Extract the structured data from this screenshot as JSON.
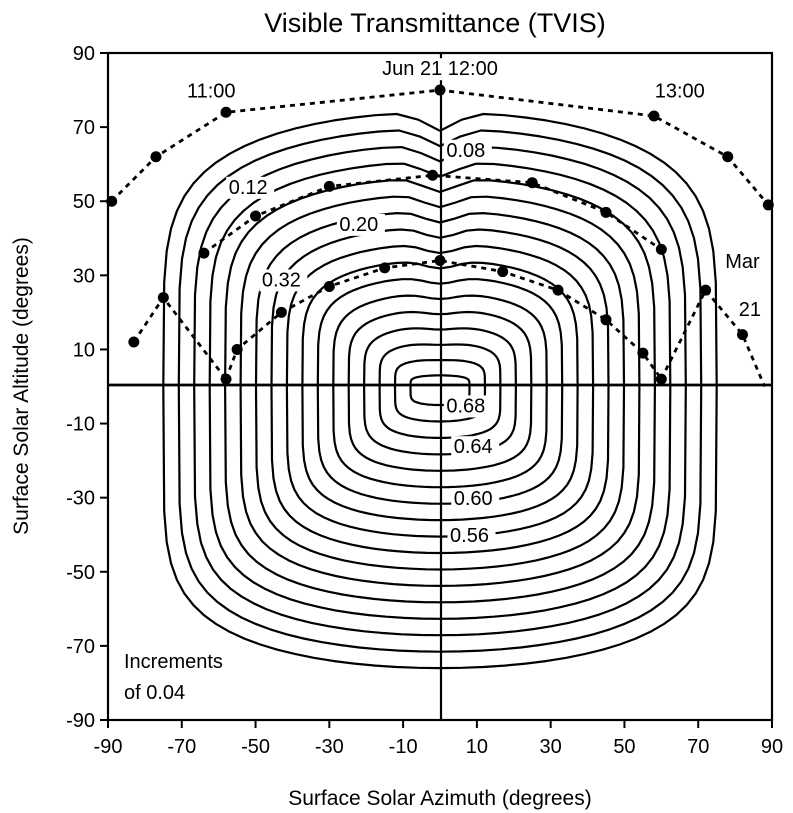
{
  "chart_data": {
    "type": "contour",
    "title": "Visible Transmittance (TVIS)",
    "xlabel": "Surface Solar Azimuth (degrees)",
    "ylabel": "Surface Solar Altitude (degrees)",
    "xlim": [
      -90,
      90
    ],
    "ylim": [
      -90,
      90
    ],
    "x_ticks": [
      -90,
      -70,
      -50,
      -30,
      -10,
      10,
      30,
      50,
      70,
      90
    ],
    "y_ticks": [
      90,
      70,
      50,
      30,
      10,
      -10,
      -30,
      -50,
      -70,
      -90
    ],
    "increment_note": [
      "Increments",
      "of 0.04"
    ],
    "contour_labels": [
      {
        "text": "0.08",
        "x": 7,
        "y": 62
      },
      {
        "text": "0.12",
        "x": -52,
        "y": 52
      },
      {
        "text": "0.20",
        "x": -22,
        "y": 42
      },
      {
        "text": "0.32",
        "x": -43,
        "y": 27
      },
      {
        "text": "0.68",
        "x": 7,
        "y": -7
      },
      {
        "text": "0.64",
        "x": 9,
        "y": -18
      },
      {
        "text": "0.60",
        "x": 9,
        "y": -32
      },
      {
        "text": "0.56",
        "x": 8,
        "y": -42
      }
    ],
    "series": [
      {
        "name": "Jun 21",
        "points": [
          [
            -89,
            50
          ],
          [
            -77,
            62
          ],
          [
            -58,
            74
          ],
          [
            0,
            80
          ],
          [
            58,
            73
          ],
          [
            78,
            62
          ],
          [
            89,
            49
          ]
        ]
      },
      {
        "name": "",
        "points": [
          [
            -64,
            36
          ],
          [
            -50,
            46
          ],
          [
            -30,
            54
          ],
          [
            -2,
            57
          ],
          [
            25,
            55
          ],
          [
            45,
            47
          ],
          [
            60,
            37
          ]
        ]
      },
      {
        "name": "Mar 21",
        "points": [
          [
            -83,
            12
          ],
          [
            -75,
            24
          ],
          [
            -58,
            2
          ],
          [
            -55,
            10
          ],
          [
            -43,
            20
          ],
          [
            -30,
            27
          ],
          [
            -15,
            32
          ],
          [
            0,
            34
          ],
          [
            17,
            31
          ],
          [
            32,
            26
          ],
          [
            45,
            18
          ],
          [
            55,
            9
          ],
          [
            60,
            2
          ],
          [
            72,
            26
          ],
          [
            82,
            14
          ]
        ]
      }
    ],
    "path_annotations": [
      {
        "text": "11:00",
        "x": -62,
        "y": 78
      },
      {
        "text": "Jun 21 12:00",
        "x": 0,
        "y": 84
      },
      {
        "text": "13:00",
        "x": 65,
        "y": 78
      },
      {
        "text": "Mar",
        "x": 82,
        "y": 32
      },
      {
        "text": "21",
        "x": 84,
        "y": 19
      }
    ]
  }
}
